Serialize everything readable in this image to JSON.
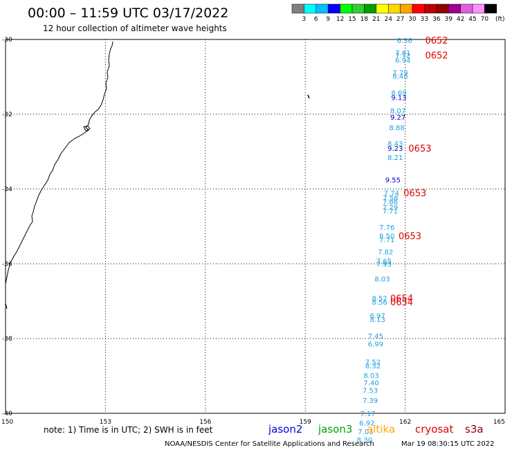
{
  "title": "00:00 – 11:59 UTC 03/17/2022",
  "subtitle": "12 hour collection of altimeter wave heights",
  "color_scale": {
    "colors": [
      "#808080",
      "#00ffff",
      "#00bfff",
      "#0000ff",
      "#00ff00",
      "#32cd32",
      "#00a000",
      "#ffff00",
      "#ffd700",
      "#ffa500",
      "#ff0000",
      "#c00000",
      "#900000",
      "#a0008c",
      "#e060e0",
      "#ff90ff",
      "#000000"
    ],
    "labels": [
      "3",
      "6",
      "9",
      "12",
      "15",
      "18",
      "21",
      "24",
      "27",
      "30",
      "33",
      "36",
      "39",
      "42",
      "45",
      "70"
    ],
    "unit": "(ft)"
  },
  "map": {
    "lon_ticks": [
      "150",
      "153",
      "156",
      "159",
      "162",
      "165"
    ],
    "lat_ticks": [
      "-30",
      "-32",
      "-34",
      "-36",
      "-38",
      "-40"
    ]
  },
  "observations": [
    {
      "lon": 161.75,
      "lat": -30.02,
      "value": "6.36",
      "color": "#1ea0e0"
    },
    {
      "lon": 161.7,
      "lat": -30.35,
      "value": "7.81",
      "color": "#1ea0e0"
    },
    {
      "lon": 161.7,
      "lat": -30.42,
      "value": "7.72",
      "color": "#1ea0e0"
    },
    {
      "lon": 161.7,
      "lat": -30.55,
      "value": "6.94",
      "color": "#1ea0e0"
    },
    {
      "lon": 161.62,
      "lat": -30.88,
      "value": "7.79",
      "color": "#1ea0e0"
    },
    {
      "lon": 161.62,
      "lat": -30.97,
      "value": "8.48",
      "color": "#1ea0e0"
    },
    {
      "lon": 161.58,
      "lat": -31.42,
      "value": "8.69",
      "color": "#1ea0e0"
    },
    {
      "lon": 161.58,
      "lat": -31.55,
      "value": "9.13",
      "color": "#0000cc"
    },
    {
      "lon": 161.55,
      "lat": -31.9,
      "value": "8.07",
      "color": "#1ea0e0"
    },
    {
      "lon": 161.55,
      "lat": -32.07,
      "value": "9.27",
      "color": "#0000cc"
    },
    {
      "lon": 161.52,
      "lat": -32.35,
      "value": "8.88",
      "color": "#1ea0e0"
    },
    {
      "lon": 161.47,
      "lat": -32.78,
      "value": "8.43",
      "color": "#1ea0e0"
    },
    {
      "lon": 161.47,
      "lat": -32.91,
      "value": "9.23",
      "color": "#0000cc"
    },
    {
      "lon": 161.47,
      "lat": -33.15,
      "value": "8.21",
      "color": "#1ea0e0"
    },
    {
      "lon": 161.4,
      "lat": -33.75,
      "value": "9.55",
      "color": "#0000cc"
    },
    {
      "lon": 161.36,
      "lat": -34.1,
      "value": "7.74",
      "color": "#1ea0e0"
    },
    {
      "lon": 161.33,
      "lat": -34.23,
      "value": "7.58",
      "color": "#1ea0e0"
    },
    {
      "lon": 161.32,
      "lat": -34.33,
      "value": "7.86",
      "color": "#1ea0e0"
    },
    {
      "lon": 161.32,
      "lat": -34.48,
      "value": "7.29",
      "color": "#1ea0e0"
    },
    {
      "lon": 161.32,
      "lat": -34.58,
      "value": "7.71",
      "color": "#1ea0e0"
    },
    {
      "lon": 161.22,
      "lat": -35.02,
      "value": "7.76",
      "color": "#1ea0e0"
    },
    {
      "lon": 161.22,
      "lat": -35.25,
      "value": "8.50",
      "color": "#1ea0e0"
    },
    {
      "lon": 161.22,
      "lat": -35.35,
      "value": "7.71",
      "color": "#1ea0e0"
    },
    {
      "lon": 161.18,
      "lat": -35.68,
      "value": "7.82",
      "color": "#1ea0e0"
    },
    {
      "lon": 161.13,
      "lat": -35.92,
      "value": "7.65",
      "color": "#1ea0e0"
    },
    {
      "lon": 161.13,
      "lat": -36.0,
      "value": "7.93",
      "color": "#1ea0e0"
    },
    {
      "lon": 161.08,
      "lat": -36.4,
      "value": "8.03",
      "color": "#1ea0e0"
    },
    {
      "lon": 161.0,
      "lat": -36.92,
      "value": "8.52",
      "color": "#1ea0e0"
    },
    {
      "lon": 161.0,
      "lat": -37.02,
      "value": "8.56",
      "color": "#1ea0e0"
    },
    {
      "lon": 160.94,
      "lat": -37.38,
      "value": "6.97",
      "color": "#1ea0e0"
    },
    {
      "lon": 160.94,
      "lat": -37.48,
      "value": "8.13",
      "color": "#1ea0e0"
    },
    {
      "lon": 160.88,
      "lat": -37.93,
      "value": "7.45",
      "color": "#1ea0e0"
    },
    {
      "lon": 160.88,
      "lat": -38.14,
      "value": "6.99",
      "color": "#1ea0e0"
    },
    {
      "lon": 160.8,
      "lat": -38.62,
      "value": "7.52",
      "color": "#1ea0e0"
    },
    {
      "lon": 160.8,
      "lat": -38.72,
      "value": "8.32",
      "color": "#1ea0e0"
    },
    {
      "lon": 160.75,
      "lat": -38.98,
      "value": "8.03",
      "color": "#1ea0e0"
    },
    {
      "lon": 160.75,
      "lat": -39.18,
      "value": "7.40",
      "color": "#1ea0e0"
    },
    {
      "lon": 160.72,
      "lat": -39.38,
      "value": "7.53",
      "color": "#1ea0e0"
    },
    {
      "lon": 160.72,
      "lat": -39.65,
      "value": "7.39",
      "color": "#1ea0e0"
    },
    {
      "lon": 160.65,
      "lat": -40.0,
      "value": "7.17",
      "color": "#1ea0e0"
    },
    {
      "lon": 160.62,
      "lat": -40.25,
      "value": "6.92",
      "color": "#1ea0e0"
    },
    {
      "lon": 160.58,
      "lat": -40.48,
      "value": "7.03",
      "color": "#1ea0e0"
    },
    {
      "lon": 160.55,
      "lat": -40.7,
      "value": "8.30",
      "color": "#1ea0e0"
    }
  ],
  "time_labels": [
    {
      "lon": 162.6,
      "lat": -30.02,
      "text": "0652"
    },
    {
      "lon": 162.6,
      "lat": -30.42,
      "text": "0652"
    },
    {
      "lon": 162.1,
      "lat": -32.91,
      "text": "0653"
    },
    {
      "lon": 161.95,
      "lat": -34.1,
      "text": "0653"
    },
    {
      "lon": 161.8,
      "lat": -35.25,
      "text": "0653"
    },
    {
      "lon": 161.55,
      "lat": -36.92,
      "text": "0654"
    },
    {
      "lon": 161.55,
      "lat": -37.02,
      "text": "0654"
    }
  ],
  "note": "note: 1) Time is in UTC; 2) SWH is in feet",
  "satellites": [
    {
      "name": "jason2",
      "color": "#0000dd"
    },
    {
      "name": "jason3",
      "color": "#00a000"
    },
    {
      "name": "altika",
      "color": "#ffa500"
    },
    {
      "name": "cryosat",
      "color": "#e00000"
    },
    {
      "name": "s3a",
      "color": "#900000"
    }
  ],
  "credit_left": "NOAA/NESDIS Center for Satellite Applications and Research",
  "credit_right": "Mar 19 08:30:15 UTC 2022"
}
